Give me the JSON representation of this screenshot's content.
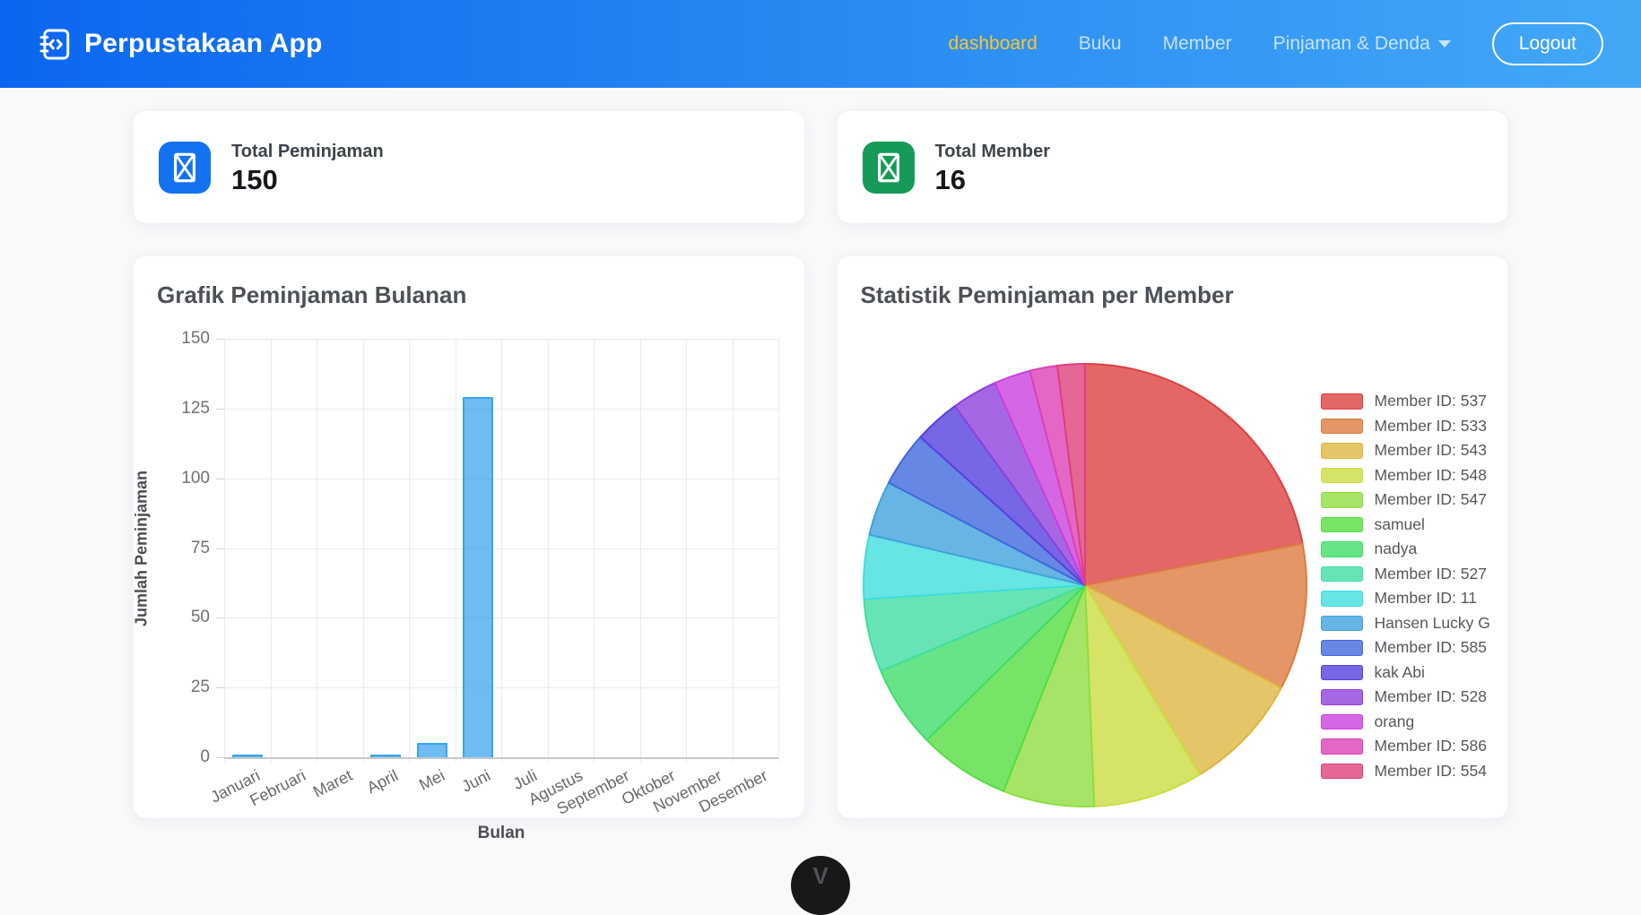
{
  "navbar": {
    "brand": "Perpustakaan App",
    "links": [
      {
        "label": "dashboard",
        "active": true
      },
      {
        "label": "Buku",
        "active": false
      },
      {
        "label": "Member",
        "active": false
      },
      {
        "label": "Pinjaman & Denda",
        "active": false,
        "dropdown": true
      }
    ],
    "logout_label": "Logout",
    "colors": {
      "gradient_start": "#0b66ef",
      "gradient_end": "#42a8f6",
      "active_link": "#fdc62f"
    }
  },
  "stats": [
    {
      "label": "Total Peminjaman",
      "value": "150",
      "icon": "missing-glyph",
      "icon_bg": "#1372f0"
    },
    {
      "label": "Total Member",
      "value": "16",
      "icon": "missing-glyph",
      "icon_bg": "#159a58"
    }
  ],
  "chart_data": [
    {
      "type": "bar",
      "title": "Grafik Peminjaman Bulanan",
      "xlabel": "Bulan",
      "ylabel": "Jumlah Peminjaman",
      "categories": [
        "Januari",
        "Februari",
        "Maret",
        "April",
        "Mei",
        "Juni",
        "Juli",
        "Agustus",
        "September",
        "Oktober",
        "November",
        "Desember"
      ],
      "values": [
        1,
        0,
        0,
        1,
        5,
        129,
        0,
        0,
        0,
        0,
        0,
        0
      ],
      "ylim": [
        0,
        150
      ],
      "yticks": [
        0,
        25,
        50,
        75,
        100,
        125,
        150
      ],
      "grid": true,
      "bar_fill": "rgba(54,162,235,0.72)",
      "bar_border": "rgba(54,162,235,0.95)"
    },
    {
      "type": "pie",
      "title": "Statistik Peminjaman per Member",
      "legend_position": "right",
      "labels": [
        "Member ID: 537",
        "Member ID: 533",
        "Member ID: 543",
        "Member ID: 548",
        "Member ID: 547",
        "samuel",
        "nadya",
        "Member ID: 527",
        "Member ID: 11",
        "Hansen Lucky G",
        "Member ID: 585",
        "kak Abi",
        "Member ID: 528",
        "orang",
        "Member ID: 586",
        "Member ID: 554"
      ],
      "values": [
        33,
        16,
        13,
        12,
        10,
        10,
        9,
        8,
        7,
        6,
        6,
        5,
        5,
        4,
        3,
        3
      ],
      "colors": [
        "hsl(0, 70%, 65%)",
        "hsl(22.5, 70%, 65%)",
        "hsl(45, 70%, 65%)",
        "hsl(67.5, 70%, 65%)",
        "hsl(90, 70%, 65%)",
        "hsl(112.5, 70%, 65%)",
        "hsl(135, 70%, 65%)",
        "hsl(157.5, 70%, 65%)",
        "hsl(180, 70%, 65%)",
        "hsl(202.5, 70%, 65%)",
        "hsl(225, 70%, 65%)",
        "hsl(247.5, 70%, 65%)",
        "hsl(270, 70%, 65%)",
        "hsl(292.5, 70%, 65%)",
        "hsl(315, 70%, 65%)",
        "hsl(337.5, 70%, 65%)"
      ],
      "border_colors": [
        "hsl(0, 70%, 56%)",
        "hsl(22.5, 70%, 56%)",
        "hsl(45, 70%, 56%)",
        "hsl(67.5, 70%, 56%)",
        "hsl(90, 70%, 56%)",
        "hsl(112.5, 70%, 56%)",
        "hsl(135, 70%, 56%)",
        "hsl(157.5, 70%, 56%)",
        "hsl(180, 70%, 56%)",
        "hsl(202.5, 70%, 56%)",
        "hsl(225, 70%, 56%)",
        "hsl(247.5, 70%, 56%)",
        "hsl(270, 70%, 56%)",
        "hsl(292.5, 70%, 56%)",
        "hsl(315, 70%, 56%)",
        "hsl(337.5, 70%, 56%)"
      ]
    }
  ],
  "fab": {
    "glyph": "V"
  }
}
